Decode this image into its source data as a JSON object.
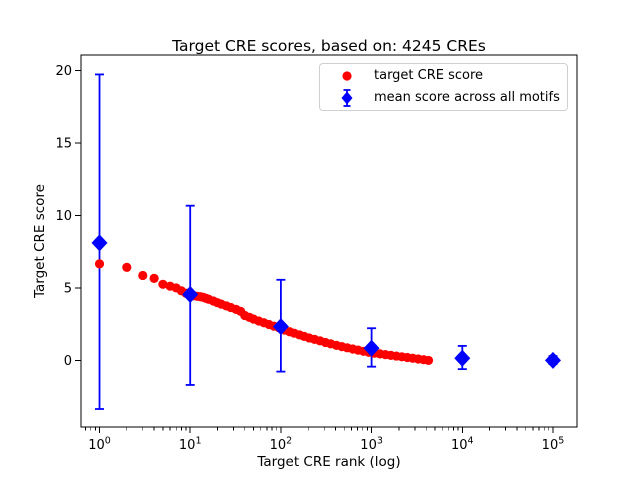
{
  "chart_data": {
    "type": "scatter",
    "title": "Target CRE scores, based on: 4245 CREs",
    "xlabel": "Target CRE rank (log)",
    "ylabel": "Target CRE score",
    "x_scale": "log",
    "xlim": [
      0.625,
      184000
    ],
    "ylim": [
      -4.59,
      21.06
    ],
    "x_major_ticks": [
      1,
      10,
      100,
      1000,
      10000,
      100000
    ],
    "x_tick_labels": [
      "10^0",
      "10^1",
      "10^2",
      "10^3",
      "10^4",
      "10^5"
    ],
    "y_ticks": [
      0,
      5,
      10,
      15,
      20
    ],
    "grid": false,
    "legend_position": "upper right",
    "colors": {
      "target_series": "#ff0000",
      "mean_series": "#0000ff",
      "axis": "#000000",
      "legend_border": "#d0d0d0"
    },
    "series": [
      {
        "name": "target CRE score",
        "marker": "circle",
        "color": "#ff0000",
        "points": [
          [
            1,
            6.66
          ],
          [
            2,
            6.42
          ],
          [
            3,
            5.86
          ],
          [
            4,
            5.66
          ],
          [
            5,
            5.25
          ],
          [
            6,
            5.12
          ],
          [
            7,
            5.0
          ],
          [
            8,
            4.8
          ],
          [
            9,
            4.63
          ],
          [
            10,
            4.5
          ],
          [
            11,
            4.46
          ],
          [
            12,
            4.42
          ],
          [
            13,
            4.39
          ],
          [
            14,
            4.35
          ],
          [
            15,
            4.28
          ],
          [
            16,
            4.22
          ],
          [
            18,
            4.1
          ],
          [
            20,
            3.98
          ],
          [
            22,
            3.88
          ],
          [
            25,
            3.76
          ],
          [
            28,
            3.65
          ],
          [
            32,
            3.52
          ],
          [
            36,
            3.38
          ],
          [
            40,
            3.1
          ],
          [
            45,
            2.97
          ],
          [
            50,
            2.85
          ],
          [
            57,
            2.72
          ],
          [
            65,
            2.6
          ],
          [
            74,
            2.48
          ],
          [
            84,
            2.36
          ],
          [
            95,
            2.26
          ],
          [
            100,
            2.2
          ],
          [
            110,
            2.1
          ],
          [
            125,
            1.98
          ],
          [
            140,
            1.88
          ],
          [
            160,
            1.76
          ],
          [
            180,
            1.66
          ],
          [
            205,
            1.55
          ],
          [
            235,
            1.45
          ],
          [
            270,
            1.35
          ],
          [
            310,
            1.24
          ],
          [
            355,
            1.14
          ],
          [
            410,
            1.04
          ],
          [
            470,
            0.95
          ],
          [
            540,
            0.87
          ],
          [
            620,
            0.79
          ],
          [
            710,
            0.71
          ],
          [
            815,
            0.63
          ],
          [
            935,
            0.56
          ],
          [
            1075,
            0.5
          ],
          [
            1235,
            0.45
          ],
          [
            1420,
            0.4
          ],
          [
            1630,
            0.35
          ],
          [
            1875,
            0.3
          ],
          [
            2155,
            0.25
          ],
          [
            2475,
            0.2
          ],
          [
            2845,
            0.15
          ],
          [
            3270,
            0.1
          ],
          [
            3760,
            0.05
          ],
          [
            4245,
            0.0
          ]
        ]
      },
      {
        "name": "mean score across all motifs",
        "marker": "diamond",
        "color": "#0000ff",
        "errorbars": true,
        "points": [
          {
            "x": 1,
            "y": 8.11,
            "lo": -3.35,
            "hi": 19.72
          },
          {
            "x": 10,
            "y": 4.55,
            "lo": -1.69,
            "hi": 10.67
          },
          {
            "x": 100,
            "y": 2.33,
            "lo": -0.77,
            "hi": 5.56
          },
          {
            "x": 1000,
            "y": 0.84,
            "lo": -0.43,
            "hi": 2.22
          },
          {
            "x": 10000,
            "y": 0.15,
            "lo": -0.6,
            "hi": 1.0
          },
          {
            "x": 100000,
            "y": 0.0,
            "lo": -0.25,
            "hi": 0.3
          }
        ]
      }
    ]
  }
}
